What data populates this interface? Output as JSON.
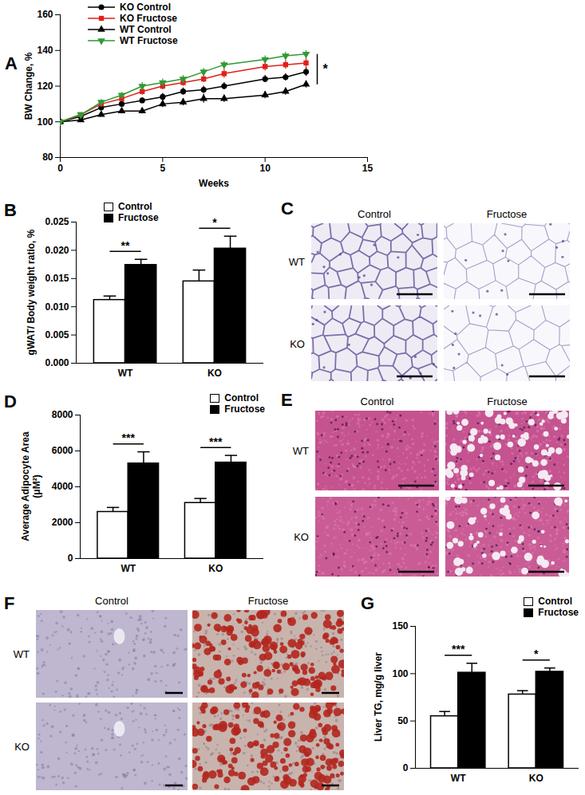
{
  "chart_data": [
    {
      "panel": "A",
      "type": "line",
      "xlabel": "Weeks",
      "ylabel": "BW Change, %",
      "x": [
        0,
        1,
        2,
        3,
        4,
        5,
        6,
        7,
        8,
        10,
        11,
        12
      ],
      "xlim": [
        0,
        15
      ],
      "xticks": [
        0,
        5,
        10,
        15
      ],
      "ylim": [
        80,
        160
      ],
      "yticks": [
        80,
        100,
        120,
        140,
        160
      ],
      "legend": "top-left",
      "series": [
        {
          "name": "KO Control",
          "color": "#000000",
          "marker": "circle",
          "values": [
            100,
            103,
            108,
            110,
            112,
            114,
            117,
            118,
            120,
            124,
            125,
            128
          ],
          "errors": [
            0,
            1,
            1.5,
            1.5,
            1.5,
            2,
            2,
            2,
            2,
            2,
            2,
            2.5
          ]
        },
        {
          "name": "KO Fructose",
          "color": "#e0201b",
          "marker": "square",
          "values": [
            100,
            104,
            110,
            113,
            117,
            120,
            122,
            124,
            127,
            131,
            132,
            133
          ],
          "errors": [
            0,
            1,
            1.5,
            1.5,
            2,
            2,
            2,
            2,
            2.5,
            2.5,
            2.5,
            3
          ]
        },
        {
          "name": "WT Control",
          "color": "#000000",
          "marker": "triangle",
          "values": [
            100,
            101,
            104,
            106,
            106,
            110,
            111,
            113,
            113,
            115,
            117,
            121
          ],
          "errors": [
            0,
            1,
            1,
            1.5,
            1.5,
            2,
            2,
            2.5,
            2,
            2,
            2,
            2
          ]
        },
        {
          "name": "WT Fructose",
          "color": "#2e9a35",
          "marker": "triangle-down",
          "values": [
            100,
            104,
            111,
            115,
            120,
            122,
            124,
            128,
            132,
            135,
            137,
            138
          ],
          "errors": [
            0,
            1,
            1.5,
            1.5,
            2,
            2,
            2,
            2,
            2,
            2,
            2,
            2
          ]
        }
      ],
      "annotations": [
        {
          "text": "*",
          "between": [
            "WT Control",
            "WT Fructose"
          ]
        }
      ]
    },
    {
      "panel": "B",
      "type": "bar",
      "ylabel": "gWAT/ Body weight ratio, %",
      "categories": [
        "WT",
        "KO"
      ],
      "series": [
        {
          "name": "Control",
          "color": "#ffffff",
          "values": [
            0.0112,
            0.0145
          ],
          "errors": [
            0.0007,
            0.002
          ]
        },
        {
          "name": "Fructose",
          "color": "#000000",
          "values": [
            0.0174,
            0.0203
          ],
          "errors": [
            0.001,
            0.0022
          ]
        }
      ],
      "ylim": [
        0,
        0.025
      ],
      "yticks": [
        {
          "value": 0,
          "label": "0.000"
        },
        {
          "value": 0.005,
          "label": "0.005"
        },
        {
          "value": 0.01,
          "label": "0.010"
        },
        {
          "value": 0.015,
          "label": "0.015"
        },
        {
          "value": 0.02,
          "label": "0.020"
        },
        {
          "value": 0.025,
          "label": "0.025"
        }
      ],
      "legend": "top-left",
      "significance": [
        "**",
        "*"
      ]
    },
    {
      "panel": "D",
      "type": "bar",
      "ylabel": "Average Adipocyte Area\n(μM²)",
      "categories": [
        "WT",
        "KO"
      ],
      "series": [
        {
          "name": "Control",
          "color": "#ffffff",
          "values": [
            2600,
            3100
          ],
          "errors": [
            250,
            250
          ]
        },
        {
          "name": "Fructose",
          "color": "#000000",
          "values": [
            5300,
            5350
          ],
          "errors": [
            650,
            400
          ]
        }
      ],
      "ylim": [
        0,
        8000
      ],
      "yticks": [
        0,
        2000,
        4000,
        6000,
        8000
      ],
      "legend": "top-right",
      "significance": [
        "***",
        "***"
      ]
    },
    {
      "panel": "G",
      "type": "bar",
      "ylabel": "Liver TG, mg/g liver",
      "categories": [
        "WT",
        "KO"
      ],
      "series": [
        {
          "name": "Control",
          "color": "#ffffff",
          "values": [
            55,
            78
          ],
          "errors": [
            5,
            4
          ]
        },
        {
          "name": "Fructose",
          "color": "#000000",
          "values": [
            101,
            102
          ],
          "errors": [
            10,
            4
          ]
        }
      ],
      "ylim": [
        0,
        150
      ],
      "yticks": [
        0,
        50,
        100,
        150
      ],
      "legend": "top-right",
      "significance": [
        "***",
        "*"
      ]
    }
  ],
  "micrographs": [
    {
      "panel": "C",
      "columns": [
        "Control",
        "Fructose"
      ],
      "rows": [
        "WT",
        "KO"
      ]
    },
    {
      "panel": "E",
      "columns": [
        "Control",
        "Fructose"
      ],
      "rows": [
        "WT",
        "KO"
      ]
    },
    {
      "panel": "F",
      "columns": [
        "Control",
        "Fructose"
      ],
      "rows": [
        "WT",
        "KO"
      ]
    }
  ]
}
